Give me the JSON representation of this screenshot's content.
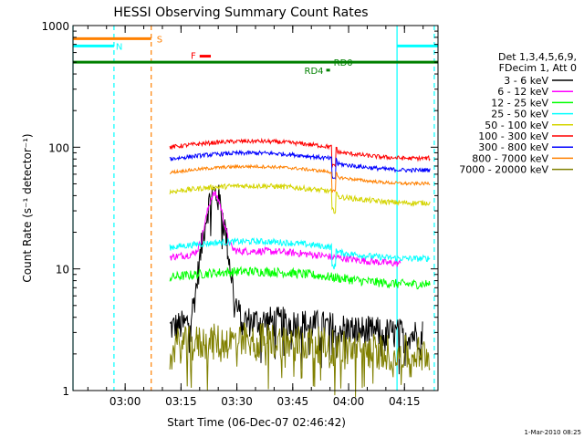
{
  "chart_data": {
    "type": "line",
    "title": "HESSI Observing Summary Count Rates",
    "xlabel": "Start Time (06-Dec-07 02:46:42)",
    "ylabel": "Count Rate (s⁻¹ detector⁻¹)",
    "x_range": [
      "02:46",
      "04:24"
    ],
    "ylim": [
      1,
      1000
    ],
    "yscale": "log",
    "x_ticks": [
      "03:00",
      "03:15",
      "03:30",
      "03:45",
      "04:00",
      "04:15"
    ],
    "y_ticks": [
      "1",
      "10",
      "100",
      "1000"
    ],
    "grid": false,
    "legend_position": "right",
    "legend_title_line1": "Det 1,3,4,5,6,9,",
    "legend_title_line2": "FDecim 1, Att 0",
    "series": [
      {
        "name": "3 - 6 keV",
        "color": "#000000",
        "base": 3.3,
        "noise": 0.3,
        "start": "03:12",
        "end": "04:20"
      },
      {
        "name": "6 - 12 keV",
        "color": "#ff00ff",
        "base": 12.5,
        "noise": 0.07,
        "start": "03:12",
        "end": "04:14"
      },
      {
        "name": "12 - 25 keV",
        "color": "#00ff00",
        "base": 8.5,
        "noise": 0.09,
        "start": "03:12",
        "end": "04:22"
      },
      {
        "name": "25 - 50 keV",
        "color": "#00ffff",
        "base": 15.0,
        "noise": 0.06,
        "start": "03:12",
        "end": "04:22"
      },
      {
        "name": "50 - 100 keV",
        "color": "#d4d400",
        "base": 43,
        "noise": 0.05,
        "start": "03:12",
        "end": "04:22"
      },
      {
        "name": "100 - 300 keV",
        "color": "#ff0000",
        "base": 100,
        "noise": 0.04,
        "start": "03:12",
        "end": "04:22"
      },
      {
        "name": "300 - 800 keV",
        "color": "#0000ff",
        "base": 80,
        "noise": 0.04,
        "start": "03:12",
        "end": "04:22"
      },
      {
        "name": "800 - 7000 keV",
        "color": "#ff8000",
        "base": 62,
        "noise": 0.03,
        "start": "03:12",
        "end": "04:22"
      },
      {
        "name": "7000 - 20000 keV",
        "color": "#808000",
        "base": 2.3,
        "noise": 0.35,
        "start": "03:12",
        "end": "04:22"
      }
    ],
    "flare_peak": {
      "time": "03:24",
      "counts_6_12_keV": 40,
      "counts_3_6_keV": 38
    },
    "flags": [
      {
        "label": "S",
        "color": "#ff8000",
        "start": "02:46",
        "end": "03:07",
        "level": 780
      },
      {
        "label": "N",
        "color": "#00ffff",
        "start": "02:46",
        "end": "02:57",
        "level": 680
      },
      {
        "label": "N",
        "color": "#00ffff",
        "start": "04:13",
        "end": "04:24",
        "level": 680
      },
      {
        "label": "F",
        "color": "#ff0000",
        "start": "03:20",
        "end": "03:23",
        "level": 560
      },
      {
        "label": "RD0",
        "color": "#008000",
        "start": "02:46",
        "end": "04:24",
        "level": 500
      },
      {
        "label": "RD4",
        "color": "#008000",
        "start": "03:54",
        "end": "03:55",
        "level": 430
      }
    ],
    "vlines": [
      {
        "time": "02:46",
        "color": "#00ffff",
        "style": "solid"
      },
      {
        "time": "02:57",
        "color": "#00ffff",
        "style": "dashed"
      },
      {
        "time": "03:07",
        "color": "#ff8000",
        "style": "dashed"
      },
      {
        "time": "04:13",
        "color": "#00ffff",
        "style": "solid"
      },
      {
        "time": "04:23",
        "color": "#00ffff",
        "style": "dashed"
      }
    ]
  },
  "footer": {
    "timestamp": "1-Mar-2010 08:25"
  }
}
